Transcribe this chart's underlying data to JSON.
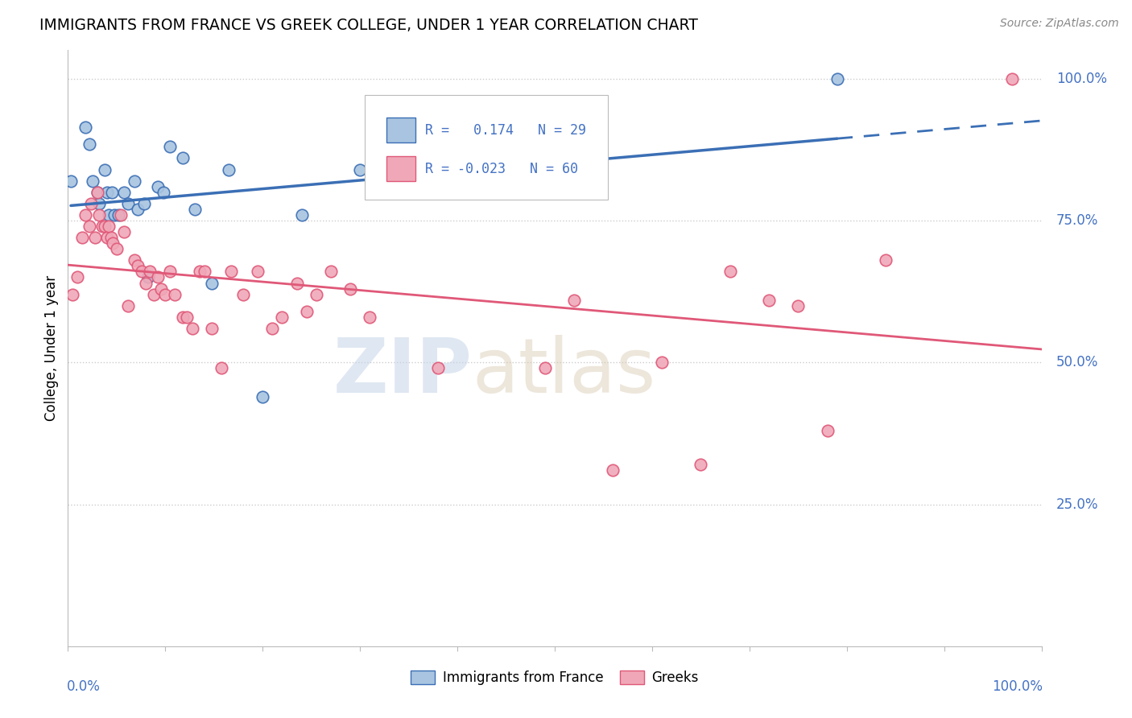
{
  "title": "IMMIGRANTS FROM FRANCE VS GREEK COLLEGE, UNDER 1 YEAR CORRELATION CHART",
  "source": "Source: ZipAtlas.com",
  "ylabel": "College, Under 1 year",
  "legend_blue_r": "0.174",
  "legend_blue_n": "29",
  "legend_pink_r": "-0.023",
  "legend_pink_n": "60",
  "legend_labels": [
    "Immigrants from France",
    "Greeks"
  ],
  "blue_color": "#a8c4e0",
  "blue_line_color": "#3b6fb5",
  "pink_color": "#f0a8b8",
  "pink_line_color": "#e05878",
  "blue_x": [
    0.003,
    0.018,
    0.022,
    0.025,
    0.03,
    0.032,
    0.038,
    0.04,
    0.042,
    0.045,
    0.048,
    0.052,
    0.058,
    0.062,
    0.068,
    0.072,
    0.078,
    0.082,
    0.092,
    0.098,
    0.105,
    0.118,
    0.13,
    0.148,
    0.165,
    0.2,
    0.24,
    0.3,
    0.79
  ],
  "blue_y": [
    0.82,
    0.915,
    0.885,
    0.82,
    0.8,
    0.78,
    0.84,
    0.8,
    0.76,
    0.8,
    0.76,
    0.76,
    0.8,
    0.78,
    0.82,
    0.77,
    0.78,
    0.65,
    0.81,
    0.8,
    0.88,
    0.86,
    0.77,
    0.64,
    0.84,
    0.44,
    0.76,
    0.84,
    1.0
  ],
  "pink_x": [
    0.005,
    0.01,
    0.015,
    0.018,
    0.022,
    0.024,
    0.028,
    0.03,
    0.032,
    0.035,
    0.038,
    0.04,
    0.042,
    0.044,
    0.046,
    0.05,
    0.054,
    0.058,
    0.062,
    0.068,
    0.072,
    0.076,
    0.08,
    0.084,
    0.088,
    0.092,
    0.096,
    0.1,
    0.105,
    0.11,
    0.118,
    0.122,
    0.128,
    0.135,
    0.14,
    0.148,
    0.158,
    0.168,
    0.18,
    0.195,
    0.21,
    0.22,
    0.235,
    0.245,
    0.255,
    0.27,
    0.29,
    0.31,
    0.38,
    0.49,
    0.52,
    0.56,
    0.61,
    0.65,
    0.68,
    0.72,
    0.75,
    0.78,
    0.84,
    0.97
  ],
  "pink_y": [
    0.62,
    0.65,
    0.72,
    0.76,
    0.74,
    0.78,
    0.72,
    0.8,
    0.76,
    0.74,
    0.74,
    0.72,
    0.74,
    0.72,
    0.71,
    0.7,
    0.76,
    0.73,
    0.6,
    0.68,
    0.67,
    0.66,
    0.64,
    0.66,
    0.62,
    0.65,
    0.63,
    0.62,
    0.66,
    0.62,
    0.58,
    0.58,
    0.56,
    0.66,
    0.66,
    0.56,
    0.49,
    0.66,
    0.62,
    0.66,
    0.56,
    0.58,
    0.64,
    0.59,
    0.62,
    0.66,
    0.63,
    0.58,
    0.49,
    0.49,
    0.61,
    0.31,
    0.5,
    0.32,
    0.66,
    0.61,
    0.6,
    0.38,
    0.68,
    1.0
  ],
  "xlim": [
    0.0,
    1.0
  ],
  "ylim": [
    0.0,
    1.05
  ],
  "bg_color": "#ffffff",
  "grid_color": "#cccccc",
  "watermark_zip": "ZIP",
  "watermark_atlas": "atlas"
}
